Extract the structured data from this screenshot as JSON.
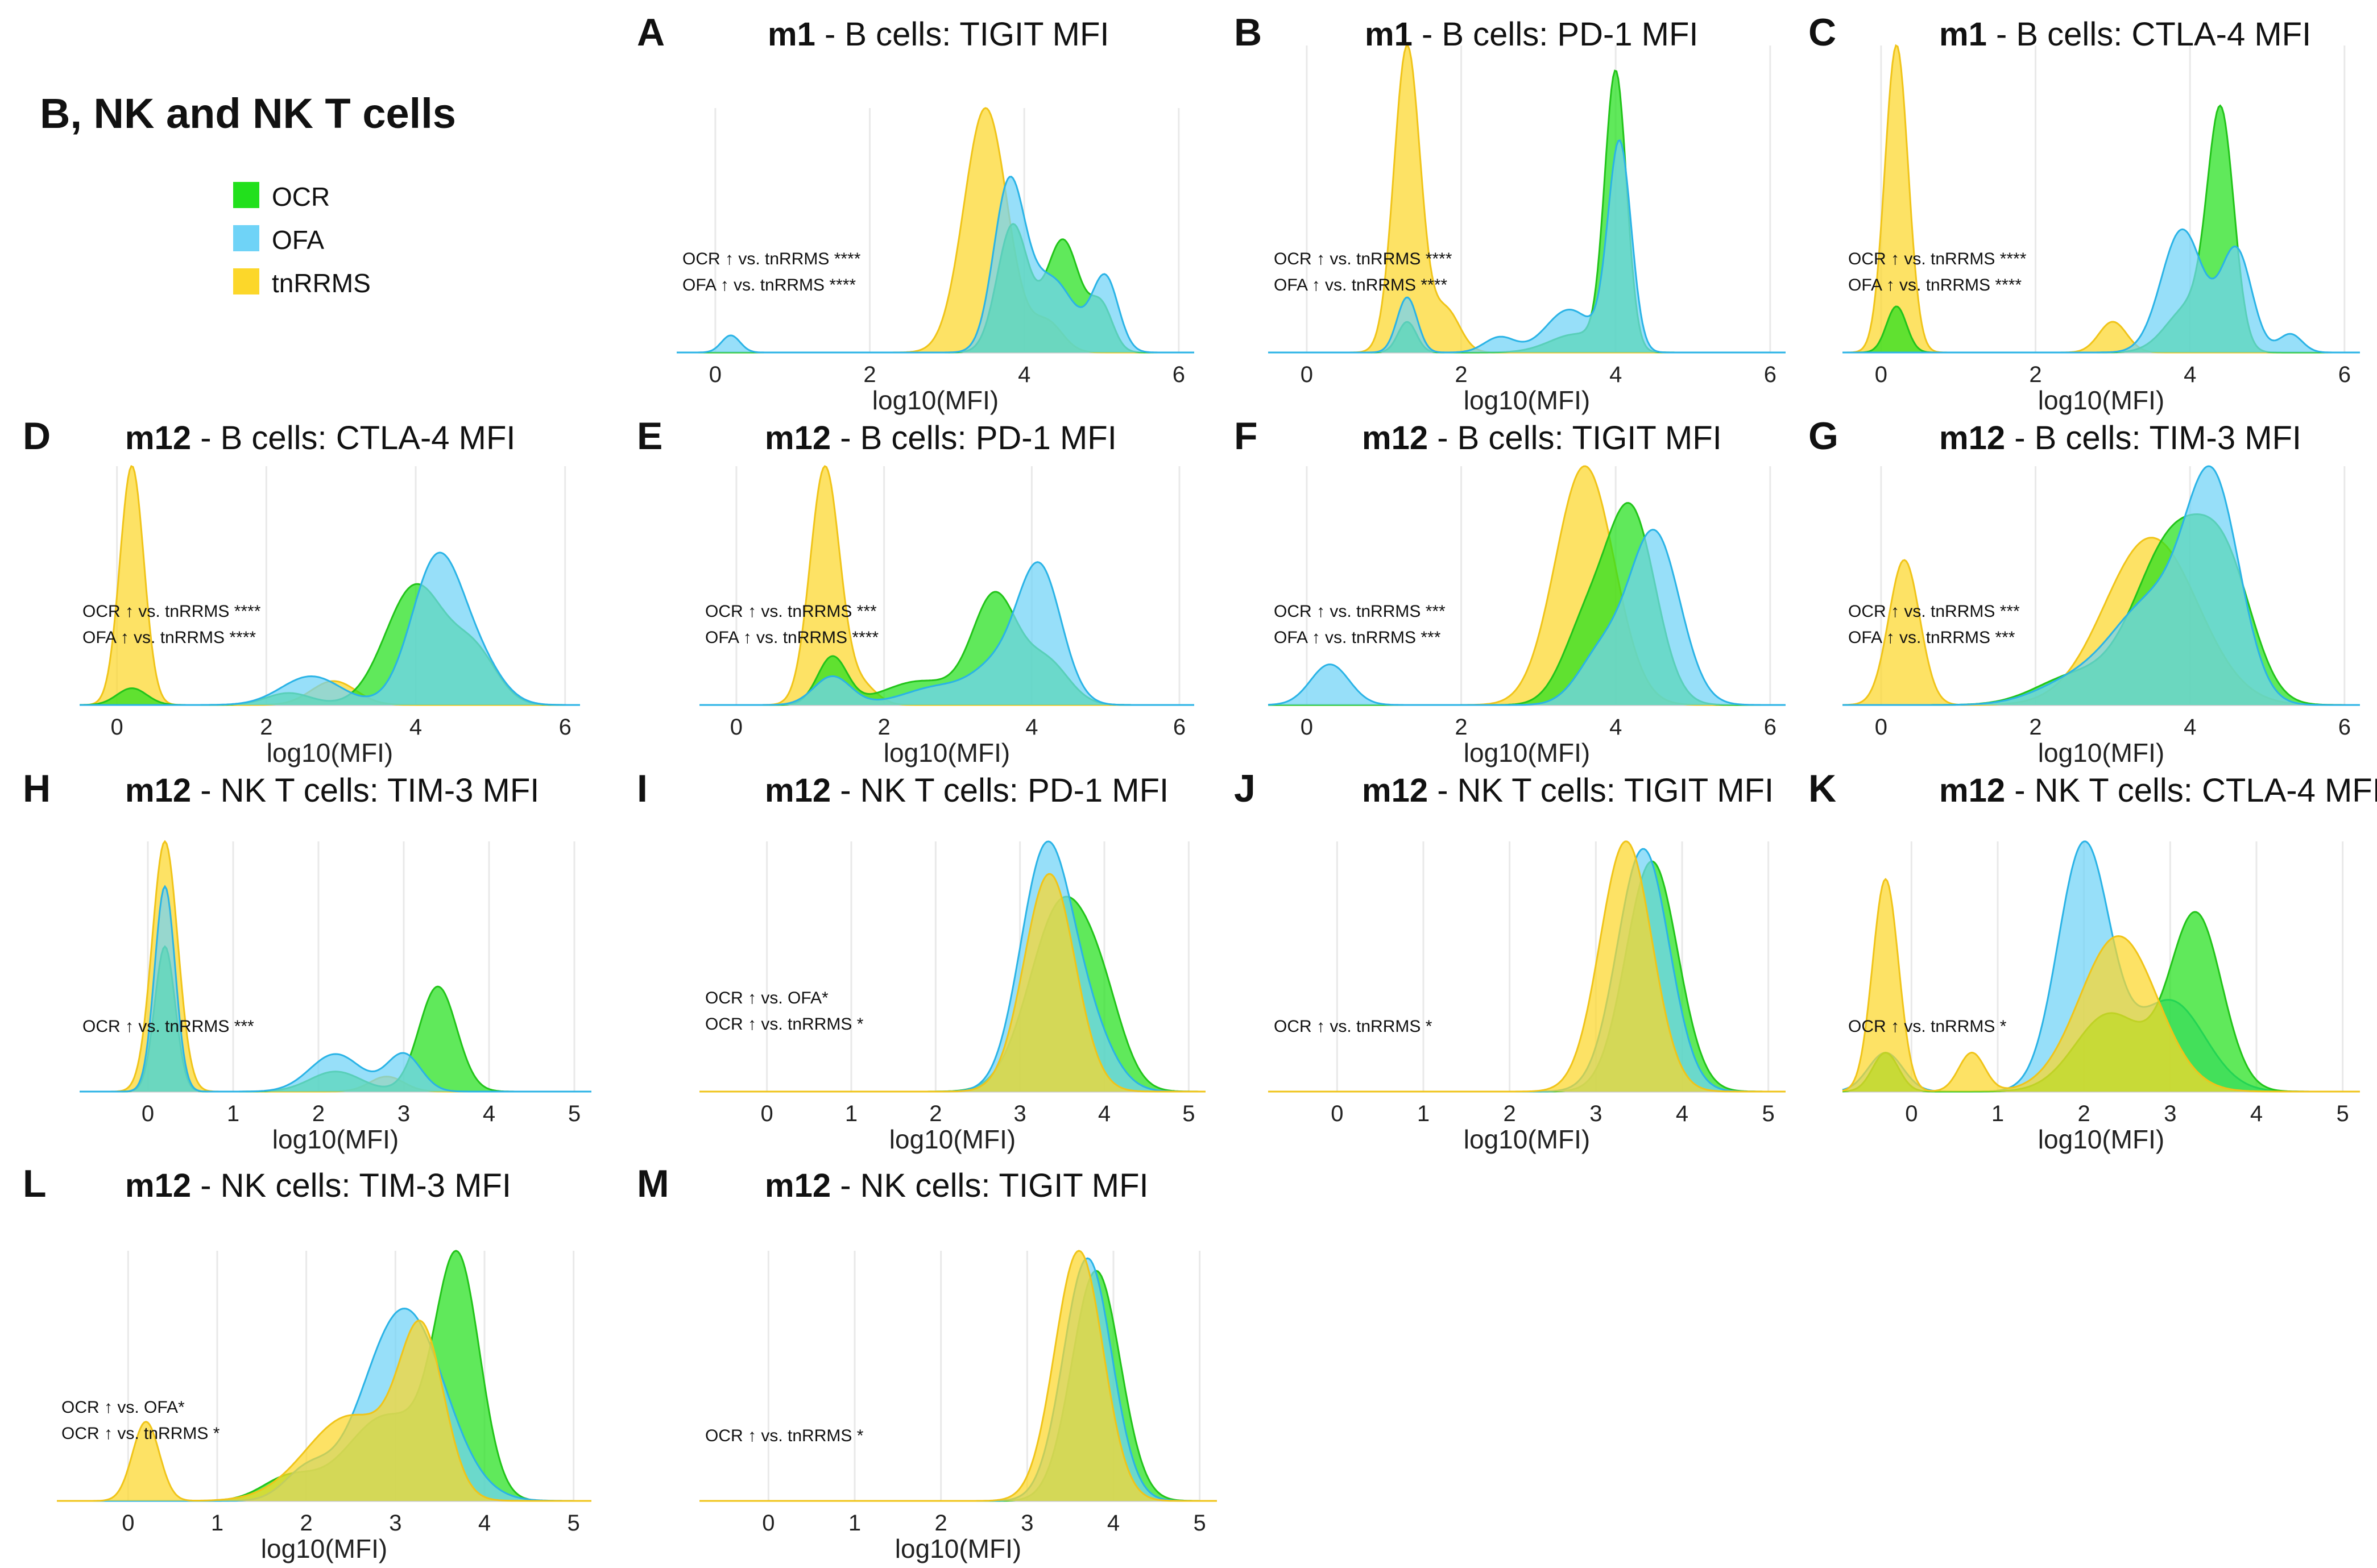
{
  "figure_title": "B, NK and NK T cells",
  "legend": [
    {
      "label": "OCR",
      "color": "#22e01c"
    },
    {
      "label": "OFA",
      "color": "#6fd3f7"
    },
    {
      "label": "tnRRMS",
      "color": "#fcd72a"
    }
  ],
  "colors": {
    "OCR_fill": "#22e01c",
    "OCR_line": "#22c41a",
    "OFA_fill": "#6fd3f7",
    "OFA_line": "#2ab3e6",
    "tnRRMS_fill": "#fcd72a",
    "tnRRMS_line": "#f0c419"
  },
  "chart_data": [
    {
      "id": "A",
      "type": "area",
      "tp": "m1",
      "title": " - B cells: TIGIT MFI",
      "xlabel": "log10(MFI)",
      "xlim": [
        -0.5,
        6.2
      ],
      "ticks": [
        0,
        2,
        4,
        6
      ],
      "annotations": [
        "OCR ↑ vs. tnRRMS ****",
        "OFA ↑ vs. tnRRMS ****"
      ],
      "series": [
        {
          "name": "tnRRMS",
          "peaks": [
            [
              3.5,
              0.28,
              1.0
            ],
            [
              4.3,
              0.2,
              0.12
            ]
          ]
        },
        {
          "name": "OCR",
          "peaks": [
            [
              3.85,
              0.2,
              0.52
            ],
            [
              4.5,
              0.22,
              0.46
            ],
            [
              5.0,
              0.15,
              0.18
            ]
          ]
        },
        {
          "name": "OFA",
          "peaks": [
            [
              0.2,
              0.12,
              0.07
            ],
            [
              3.8,
              0.2,
              0.66
            ],
            [
              4.35,
              0.3,
              0.3
            ],
            [
              5.05,
              0.17,
              0.3
            ]
          ]
        }
      ]
    },
    {
      "id": "B",
      "type": "area",
      "tp": "m1",
      "title": " - B cells: PD-1 MFI",
      "xlabel": "log10(MFI)",
      "xlim": [
        -0.5,
        6.2
      ],
      "ticks": [
        0,
        2,
        4,
        6
      ],
      "annotations": [
        "OCR ↑ vs. tnRRMS ****",
        "OFA ↑ vs. tnRRMS ****"
      ],
      "series": [
        {
          "name": "tnRRMS",
          "peaks": [
            [
              1.3,
              0.17,
              1.0
            ],
            [
              1.8,
              0.18,
              0.14
            ]
          ]
        },
        {
          "name": "OCR",
          "peaks": [
            [
              1.3,
              0.12,
              0.1
            ],
            [
              4.0,
              0.14,
              0.9
            ],
            [
              3.5,
              0.35,
              0.06
            ]
          ]
        },
        {
          "name": "OFA",
          "peaks": [
            [
              1.3,
              0.13,
              0.18
            ],
            [
              2.5,
              0.2,
              0.05
            ],
            [
              3.4,
              0.3,
              0.14
            ],
            [
              4.05,
              0.15,
              0.68
            ]
          ]
        }
      ]
    },
    {
      "id": "C",
      "type": "area",
      "tp": "m1",
      "title": " - B cells: CTLA-4 MFI",
      "xlabel": "log10(MFI)",
      "xlim": [
        -0.5,
        6.2
      ],
      "ticks": [
        0,
        2,
        4,
        6
      ],
      "annotations": [
        "OCR ↑ vs. tnRRMS ****",
        "OFA ↑ vs. tnRRMS ****"
      ],
      "series": [
        {
          "name": "tnRRMS",
          "peaks": [
            [
              0.2,
              0.15,
              1.0
            ],
            [
              3.0,
              0.18,
              0.1
            ]
          ]
        },
        {
          "name": "OCR",
          "peaks": [
            [
              0.2,
              0.13,
              0.15
            ],
            [
              4.4,
              0.17,
              0.74
            ],
            [
              4.0,
              0.3,
              0.15
            ]
          ]
        },
        {
          "name": "OFA",
          "peaks": [
            [
              3.9,
              0.27,
              0.4
            ],
            [
              4.6,
              0.2,
              0.33
            ],
            [
              5.3,
              0.15,
              0.06
            ]
          ]
        }
      ]
    },
    {
      "id": "D",
      "type": "area",
      "tp": "m12",
      "title": " - B cells: CTLA-4 MFI",
      "xlabel": "log10(MFI)",
      "xlim": [
        -0.5,
        6.2
      ],
      "ticks": [
        0,
        2,
        4,
        6
      ],
      "annotations": [
        "OCR ↑ vs. tnRRMS ****",
        "OFA ↑ vs. tnRRMS ****"
      ],
      "series": [
        {
          "name": "tnRRMS",
          "peaks": [
            [
              0.2,
              0.16,
              1.0
            ],
            [
              2.9,
              0.3,
              0.1
            ]
          ]
        },
        {
          "name": "OCR",
          "peaks": [
            [
              0.2,
              0.2,
              0.07
            ],
            [
              2.3,
              0.3,
              0.05
            ],
            [
              4.0,
              0.4,
              0.5
            ],
            [
              4.8,
              0.3,
              0.2
            ]
          ]
        },
        {
          "name": "OFA",
          "peaks": [
            [
              2.6,
              0.4,
              0.12
            ],
            [
              4.3,
              0.35,
              0.62
            ],
            [
              4.9,
              0.3,
              0.12
            ]
          ]
        }
      ]
    },
    {
      "id": "E",
      "type": "area",
      "tp": "m12",
      "title": " - B cells: PD-1 MFI",
      "xlabel": "log10(MFI)",
      "xlim": [
        -0.5,
        6.2
      ],
      "ticks": [
        0,
        2,
        4,
        6
      ],
      "annotations": [
        "OCR ↑ vs. tnRRMS ***",
        "OFA ↑ vs. tnRRMS ****"
      ],
      "series": [
        {
          "name": "tnRRMS",
          "peaks": [
            [
              1.2,
              0.2,
              1.0
            ],
            [
              1.7,
              0.2,
              0.08
            ]
          ]
        },
        {
          "name": "OCR",
          "peaks": [
            [
              1.3,
              0.2,
              0.2
            ],
            [
              2.5,
              0.5,
              0.1
            ],
            [
              3.5,
              0.3,
              0.45
            ],
            [
              4.2,
              0.3,
              0.18
            ]
          ]
        },
        {
          "name": "OFA",
          "peaks": [
            [
              1.3,
              0.25,
              0.12
            ],
            [
              2.8,
              0.5,
              0.08
            ],
            [
              4.1,
              0.3,
              0.58
            ],
            [
              3.5,
              0.3,
              0.12
            ]
          ]
        }
      ]
    },
    {
      "id": "F",
      "type": "area",
      "tp": "m12",
      "title": " - B cells: TIGIT MFI",
      "xlabel": "log10(MFI)",
      "xlim": [
        -0.5,
        6.2
      ],
      "ticks": [
        0,
        2,
        4,
        6
      ],
      "annotations": [
        "OCR ↑ vs. tnRRMS ***",
        "OFA ↑ vs. tnRRMS ***"
      ],
      "series": [
        {
          "name": "tnRRMS",
          "peaks": [
            [
              3.6,
              0.38,
              1.0
            ]
          ]
        },
        {
          "name": "OCR",
          "peaks": [
            [
              4.2,
              0.32,
              0.8
            ],
            [
              3.6,
              0.3,
              0.3
            ]
          ]
        },
        {
          "name": "OFA",
          "peaks": [
            [
              0.3,
              0.25,
              0.17
            ],
            [
              4.5,
              0.33,
              0.72
            ],
            [
              3.8,
              0.3,
              0.2
            ]
          ]
        }
      ]
    },
    {
      "id": "G",
      "type": "area",
      "tp": "m12",
      "title": " - B cells: TIM-3 MFI",
      "xlabel": "log10(MFI)",
      "xlim": [
        -0.5,
        6.2
      ],
      "ticks": [
        0,
        2,
        4,
        6
      ],
      "annotations": [
        "OCR ↑ vs. tnRRMS ***",
        "OFA ↑ vs. tnRRMS ***"
      ],
      "series": [
        {
          "name": "tnRRMS",
          "peaks": [
            [
              0.3,
              0.2,
              0.52
            ],
            [
              3.5,
              0.6,
              0.6
            ]
          ]
        },
        {
          "name": "OCR",
          "peaks": [
            [
              3.8,
              0.5,
              0.6
            ],
            [
              4.5,
              0.35,
              0.35
            ],
            [
              2.5,
              0.5,
              0.1
            ]
          ]
        },
        {
          "name": "OFA",
          "peaks": [
            [
              4.3,
              0.35,
              0.75
            ],
            [
              3.5,
              0.5,
              0.35
            ],
            [
              2.5,
              0.5,
              0.08
            ]
          ]
        }
      ]
    },
    {
      "id": "H",
      "type": "area",
      "tp": "m12",
      "title": " - NK T cells: TIM-3 MFI",
      "xlabel": "log10(MFI)",
      "xlim": [
        -0.8,
        5.2
      ],
      "ticks": [
        0,
        1,
        2,
        3,
        4,
        5
      ],
      "annotations": [
        "OCR ↑ vs. tnRRMS ***"
      ],
      "series": [
        {
          "name": "tnRRMS",
          "peaks": [
            [
              0.2,
              0.15,
              1.0
            ],
            [
              2.8,
              0.2,
              0.06
            ]
          ]
        },
        {
          "name": "OCR",
          "peaks": [
            [
              0.2,
              0.12,
              0.58
            ],
            [
              2.2,
              0.3,
              0.08
            ],
            [
              3.4,
              0.22,
              0.42
            ]
          ]
        },
        {
          "name": "OFA",
          "peaks": [
            [
              0.2,
              0.12,
              0.82
            ],
            [
              2.2,
              0.3,
              0.15
            ],
            [
              3.0,
              0.2,
              0.15
            ]
          ]
        }
      ]
    },
    {
      "id": "I",
      "type": "area",
      "tp": "m12",
      "title": " - NK T cells: PD-1 MFI",
      "xlabel": "log10(MFI)",
      "xlim": [
        -0.8,
        5.2
      ],
      "ticks": [
        0,
        1,
        2,
        3,
        4,
        5
      ],
      "annotations": [
        "OCR ↑ vs. OFA*",
        "OCR ↑ vs. tnRRMS *"
      ],
      "series": [
        {
          "name": "OCR",
          "peaks": [
            [
              3.5,
              0.38,
              0.8
            ],
            [
              4.0,
              0.25,
              0.2
            ]
          ]
        },
        {
          "name": "OFA",
          "peaks": [
            [
              3.3,
              0.3,
              1.0
            ],
            [
              3.8,
              0.3,
              0.25
            ]
          ]
        },
        {
          "name": "tnRRMS",
          "peaks": [
            [
              3.35,
              0.3,
              0.93
            ]
          ]
        }
      ]
    },
    {
      "id": "J",
      "type": "area",
      "tp": "m12",
      "title": " - NK T cells: TIGIT MFI",
      "xlabel": "log10(MFI)",
      "xlim": [
        -0.8,
        5.2
      ],
      "ticks": [
        0,
        1,
        2,
        3,
        4,
        5
      ],
      "annotations": [
        "OCR ↑ vs. tnRRMS *"
      ],
      "series": [
        {
          "name": "OCR",
          "peaks": [
            [
              3.65,
              0.3,
              0.92
            ]
          ]
        },
        {
          "name": "OFA",
          "peaks": [
            [
              3.55,
              0.3,
              0.97
            ]
          ]
        },
        {
          "name": "tnRRMS",
          "peaks": [
            [
              3.35,
              0.3,
              1.0
            ]
          ]
        }
      ]
    },
    {
      "id": "K",
      "type": "area",
      "tp": "m12",
      "title": " - NK T cells: CTLA-4 MFI",
      "xlabel": "log10(MFI)",
      "xlim": [
        -0.8,
        5.2
      ],
      "ticks": [
        0,
        1,
        2,
        3,
        4,
        5
      ],
      "annotations": [
        "OCR ↑ vs. tnRRMS *"
      ],
      "series": [
        {
          "name": "OFA",
          "peaks": [
            [
              2.0,
              0.3,
              0.95
            ],
            [
              3.0,
              0.4,
              0.35
            ],
            [
              -0.3,
              0.2,
              0.15
            ]
          ]
        },
        {
          "name": "OCR",
          "peaks": [
            [
              3.3,
              0.3,
              0.68
            ],
            [
              2.3,
              0.4,
              0.3
            ],
            [
              -0.3,
              0.15,
              0.15
            ]
          ]
        },
        {
          "name": "tnRRMS",
          "peaks": [
            [
              -0.3,
              0.15,
              0.82
            ],
            [
              0.7,
              0.15,
              0.15
            ],
            [
              2.4,
              0.45,
              0.6
            ]
          ]
        }
      ]
    },
    {
      "id": "L",
      "type": "area",
      "tp": "m12",
      "title": " - NK cells: TIM-3 MFI",
      "xlabel": "log10(MFI)",
      "xlim": [
        -0.8,
        5.2
      ],
      "ticks": [
        0,
        1,
        2,
        3,
        4,
        5
      ],
      "annotations": [
        "OCR ↑ vs. OFA*",
        "OCR ↑ vs. tnRRMS *"
      ],
      "series": [
        {
          "name": "OCR",
          "peaks": [
            [
              3.7,
              0.25,
              0.82
            ],
            [
              2.9,
              0.45,
              0.3
            ],
            [
              1.8,
              0.3,
              0.08
            ]
          ]
        },
        {
          "name": "OFA",
          "peaks": [
            [
              3.1,
              0.45,
              0.68
            ],
            [
              2.0,
              0.25,
              0.1
            ]
          ]
        },
        {
          "name": "tnRRMS",
          "peaks": [
            [
              0.2,
              0.15,
              0.28
            ],
            [
              2.5,
              0.5,
              0.3
            ],
            [
              3.3,
              0.25,
              0.55
            ]
          ]
        }
      ]
    },
    {
      "id": "M",
      "type": "area",
      "tp": "m12",
      "title": " - NK cells: TIGIT MFI",
      "xlabel": "log10(MFI)",
      "xlim": [
        -0.8,
        5.2
      ],
      "ticks": [
        0,
        1,
        2,
        3,
        4,
        5
      ],
      "annotations": [
        "OCR ↑ vs. tnRRMS *"
      ],
      "series": [
        {
          "name": "OCR",
          "peaks": [
            [
              3.8,
              0.28,
              0.92
            ]
          ]
        },
        {
          "name": "OFA",
          "peaks": [
            [
              3.7,
              0.28,
              0.97
            ]
          ]
        },
        {
          "name": "tnRRMS",
          "peaks": [
            [
              3.6,
              0.28,
              1.0
            ]
          ]
        }
      ]
    }
  ]
}
